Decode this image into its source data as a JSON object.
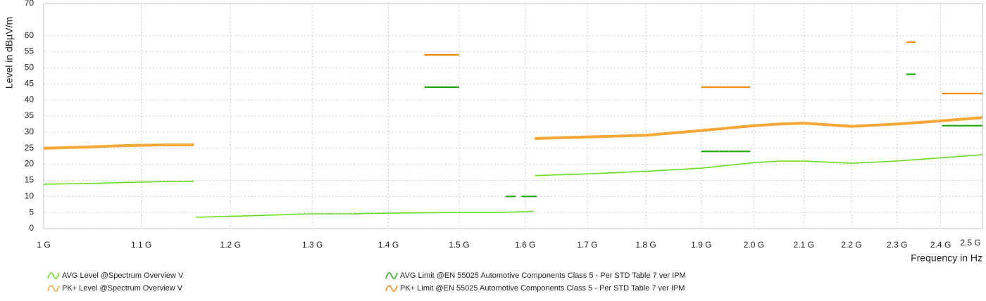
{
  "chart_data": {
    "type": "line",
    "ylabel": "Level in dBµV/m",
    "xlabel": "Frequency in Hz",
    "xscale": "log",
    "grid": true,
    "xlim": [
      1000000000,
      2500000000
    ],
    "ylim": [
      0,
      70
    ],
    "xticks": [
      {
        "value": 1000000000,
        "label": "1 G"
      },
      {
        "value": 1100000000,
        "label": "1.1 G"
      },
      {
        "value": 1200000000,
        "label": "1.2 G"
      },
      {
        "value": 1300000000,
        "label": "1.3 G"
      },
      {
        "value": 1400000000,
        "label": "1.4 G"
      },
      {
        "value": 1500000000,
        "label": "1.5 G"
      },
      {
        "value": 1600000000,
        "label": "1.6 G"
      },
      {
        "value": 1700000000,
        "label": "1.7 G"
      },
      {
        "value": 1800000000,
        "label": "1.8 G"
      },
      {
        "value": 1900000000,
        "label": "1.9 G"
      },
      {
        "value": 2000000000,
        "label": "2.0 G"
      },
      {
        "value": 2100000000,
        "label": "2.1 G"
      },
      {
        "value": 2200000000,
        "label": "2.2 G"
      },
      {
        "value": 2300000000,
        "label": "2.3 G"
      },
      {
        "value": 2400000000,
        "label": "2.4 G"
      },
      {
        "value": 2500000000,
        "label": "2.5 G"
      }
    ],
    "yticks": [
      0,
      5,
      10,
      15,
      20,
      25,
      30,
      35,
      40,
      45,
      50,
      55,
      60,
      70
    ],
    "series": [
      {
        "name": "AVG Level @Spectrum Overview V",
        "color": "#66dd22",
        "x": [
          1000000000,
          1040000000,
          1080000000,
          1120000000,
          1158000000,
          1159000000,
          1160000000,
          1200000000,
          1250000000,
          1280000000,
          1300000000,
          1350000000,
          1400000000,
          1450000000,
          1500000000,
          1550000000,
          1600000000,
          1613000000,
          1614000000,
          1615000000,
          1700000000,
          1800000000,
          1900000000,
          2000000000,
          2050000000,
          2100000000,
          2200000000,
          2300000000,
          2400000000,
          2500000000
        ],
        "values": [
          13.8,
          14,
          14.3,
          14.6,
          14.7,
          null,
          3.5,
          3.8,
          4.2,
          4.5,
          4.6,
          4.6,
          4.8,
          4.9,
          5,
          5,
          5.2,
          5.4,
          null,
          16.5,
          17,
          17.8,
          18.8,
          20.5,
          21,
          21,
          20.3,
          21,
          22,
          23
        ]
      },
      {
        "name": "PK+ Level @Spectrum Overview V",
        "color": "#f5a838",
        "x": [
          1000000000,
          1040000000,
          1080000000,
          1120000000,
          1158000000,
          1159000000,
          1615000000,
          1700000000,
          1800000000,
          1900000000,
          2000000000,
          2050000000,
          2100000000,
          2200000000,
          2300000000,
          2400000000,
          2500000000
        ],
        "values": [
          25,
          25.3,
          25.8,
          26,
          26,
          null,
          28,
          28.5,
          29,
          30.5,
          32,
          32.5,
          32.8,
          31.8,
          32.5,
          33.5,
          34.5
        ]
      },
      {
        "name": "AVG Limit @EN 55025 Automotive Components Class 5 - Per STD Table 7 ver IPM",
        "color": "#22aa11",
        "x": [
          1450000000,
          1500000000,
          1510000000,
          1570000000,
          1585000000,
          1590000000,
          1594000000,
          1618000000,
          1700000000,
          1900000000,
          1993000000,
          2100000000,
          2321000000,
          2342000000,
          2370000000,
          2403000000,
          2500000000
        ],
        "values": [
          44,
          44,
          null,
          10,
          10,
          null,
          10,
          10,
          null,
          24,
          24,
          null,
          48,
          48,
          null,
          32,
          32
        ]
      },
      {
        "name": "PK+ Limit @EN 55025 Automotive Components Class 5 - Per STD Table 7 ver IPM",
        "color": "#f08a10",
        "x": [
          1450000000,
          1500000000,
          1700000000,
          1900000000,
          1993000000,
          2100000000,
          2321000000,
          2342000000,
          2370000000,
          2403000000,
          2500000000
        ],
        "values": [
          54,
          54,
          null,
          44,
          44,
          null,
          58,
          58,
          null,
          42,
          42
        ]
      }
    ]
  }
}
